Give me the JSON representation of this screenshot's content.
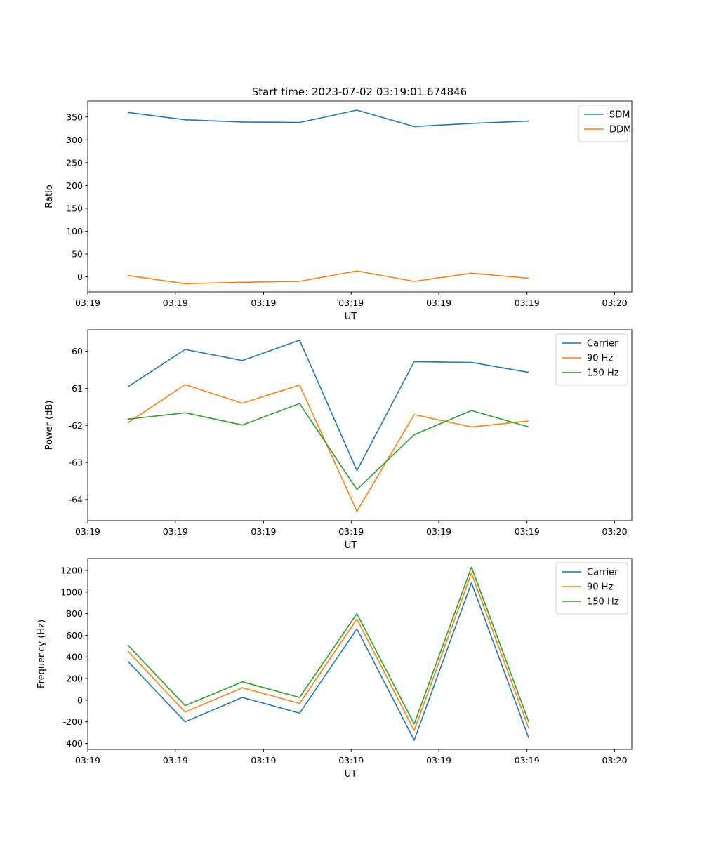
{
  "title": "Start time: 2023-07-02 03:19:01.674846",
  "xtick_labels": [
    "03:19",
    "03:19",
    "03:19",
    "03:19",
    "03:19",
    "03:19",
    "03:20"
  ],
  "x_label": "UT",
  "chart_data": [
    {
      "type": "line",
      "name": "ratio",
      "ylabel": "Ratio",
      "xlabel": "UT",
      "x": [
        1,
        2,
        3,
        4,
        5,
        6,
        7,
        8
      ],
      "ylim": [
        -33,
        385
      ],
      "yticks": [
        0,
        50,
        100,
        150,
        200,
        250,
        300,
        350
      ],
      "legend_position": "top-right",
      "series": [
        {
          "name": "SDM",
          "color": "#1f77b4",
          "values": [
            360,
            344,
            339,
            338,
            365,
            329,
            336,
            341
          ]
        },
        {
          "name": "DDM",
          "color": "#ff7f0e",
          "values": [
            3,
            -15,
            -12,
            -10,
            13,
            -10,
            8,
            -3
          ]
        }
      ]
    },
    {
      "type": "line",
      "name": "power",
      "ylabel": "Power (dB)",
      "xlabel": "UT",
      "x": [
        1,
        2,
        3,
        4,
        5,
        6,
        7,
        8
      ],
      "ylim": [
        -64.57,
        -59.42
      ],
      "yticks": [
        -64,
        -63,
        -62,
        -61,
        -60
      ],
      "legend_position": "top-right",
      "series": [
        {
          "name": "Carrier",
          "color": "#1f77b4",
          "values": [
            -60.96,
            -59.95,
            -60.25,
            -59.7,
            -63.22,
            -60.28,
            -60.3,
            -60.57
          ]
        },
        {
          "name": "90 Hz",
          "color": "#ff7f0e",
          "values": [
            -61.93,
            -60.9,
            -61.4,
            -60.91,
            -64.32,
            -61.71,
            -62.04,
            -61.88
          ]
        },
        {
          "name": "150 Hz",
          "color": "#2ca02c",
          "values": [
            -61.83,
            -61.66,
            -61.99,
            -61.41,
            -63.73,
            -62.25,
            -61.6,
            -62.04
          ]
        }
      ]
    },
    {
      "type": "line",
      "name": "frequency",
      "ylabel": "Frequency (Hz)",
      "xlabel": "UT",
      "x": [
        1,
        2,
        3,
        4,
        5,
        6,
        7,
        8
      ],
      "ylim": [
        -455,
        1310
      ],
      "yticks": [
        -400,
        -200,
        0,
        200,
        400,
        600,
        800,
        1000,
        1200
      ],
      "legend_position": "top-right",
      "series": [
        {
          "name": "Carrier",
          "color": "#1f77b4",
          "values": [
            360,
            -200,
            25,
            -120,
            660,
            -370,
            1085,
            -350
          ]
        },
        {
          "name": "90 Hz",
          "color": "#ff7f0e",
          "values": [
            455,
            -110,
            115,
            -30,
            750,
            -280,
            1175,
            -260
          ]
        },
        {
          "name": "150 Hz",
          "color": "#2ca02c",
          "values": [
            510,
            -50,
            170,
            25,
            800,
            -220,
            1230,
            -200
          ]
        }
      ]
    }
  ]
}
